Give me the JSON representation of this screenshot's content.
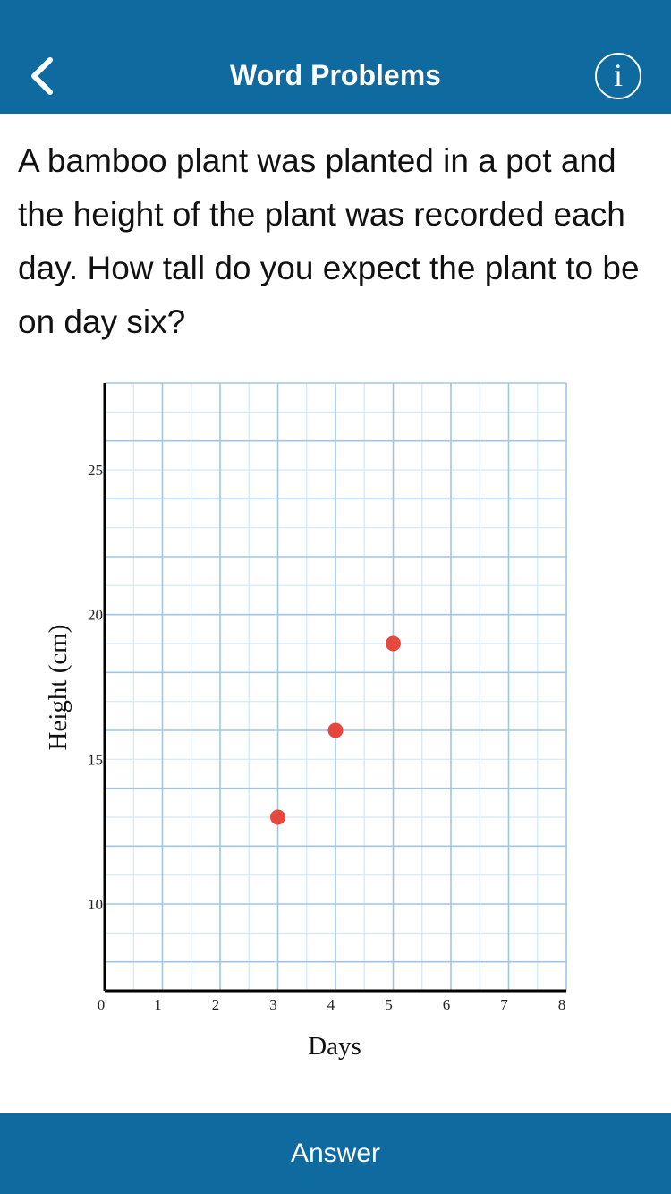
{
  "header": {
    "title": "Word Problems",
    "back_icon": "chevron-left-icon",
    "info_icon": "info-icon",
    "info_glyph": "i"
  },
  "question": {
    "text": "A bamboo plant was planted in a pot and the height of the plant was recorded each day. How tall do you expect the plant to be on day six?"
  },
  "chart_data": {
    "type": "scatter",
    "xlabel": "Days",
    "ylabel": "Height (cm)",
    "xlim": [
      0,
      8
    ],
    "ylim": [
      7,
      28
    ],
    "x_ticks": [
      0,
      1,
      2,
      3,
      4,
      5,
      6,
      7,
      8
    ],
    "y_ticks": [
      10,
      15,
      20,
      25
    ],
    "grid": true,
    "series": [
      {
        "points": [
          {
            "x": 3,
            "y": 13
          },
          {
            "x": 4,
            "y": 16
          },
          {
            "x": 5,
            "y": 19
          }
        ]
      }
    ],
    "colors": {
      "points": "#e8473b",
      "grid_major": "#9ec6e6",
      "grid_minor": "#d2e8f7",
      "axis": "#000000"
    }
  },
  "footer": {
    "answer_label": "Answer"
  },
  "colors": {
    "brand": "#0f6a9f"
  }
}
